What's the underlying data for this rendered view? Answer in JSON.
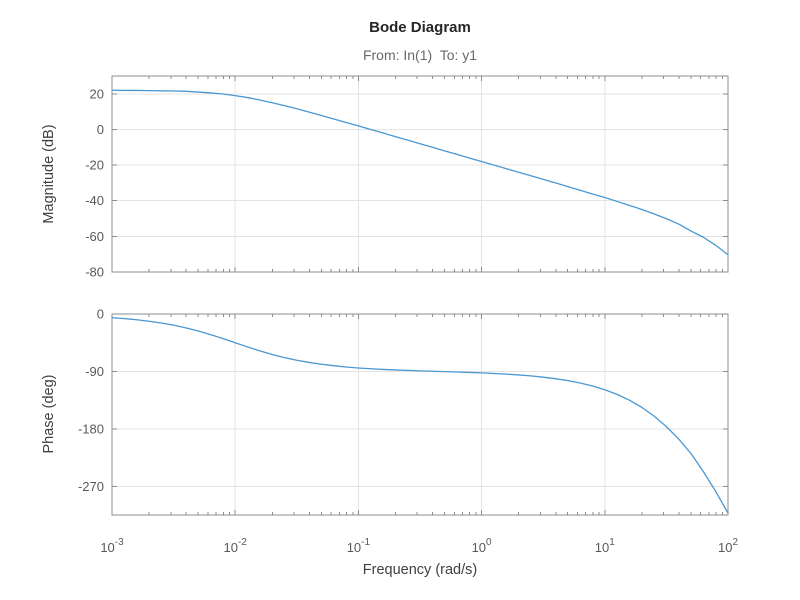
{
  "figure": {
    "title": "Bode Diagram",
    "subtitle": "From: In(1)  To: y1",
    "background": "#ffffff"
  },
  "style": {
    "line_color": "#4a97d2",
    "grid_color": "#e4e4e4",
    "axis_color": "#8c8c8c",
    "tick_label_color": "#595959",
    "title_color": "#262626",
    "subtitle_color": "#696969",
    "axis_label_color": "#3f3f3f"
  },
  "xaxis": {
    "label": "Frequency (rad/s)",
    "unit": "rad/s",
    "scale": "log",
    "ticks_log10": [
      -3,
      -2,
      -1,
      0,
      1,
      2
    ],
    "tick_labels": [
      {
        "base": "10",
        "exp": "-3"
      },
      {
        "base": "10",
        "exp": "-2"
      },
      {
        "base": "10",
        "exp": "-1"
      },
      {
        "base": "10",
        "exp": "0"
      },
      {
        "base": "10",
        "exp": "1"
      },
      {
        "base": "10",
        "exp": "2"
      }
    ]
  },
  "chart_data": [
    {
      "type": "line",
      "name": "magnitude",
      "ylabel": "Magnitude (dB)",
      "grid": true,
      "xlim_log10": [
        -3,
        2
      ],
      "ylim": [
        -80,
        30
      ],
      "yticks": [
        20,
        0,
        -20,
        -40,
        -60,
        -80
      ],
      "x_log10": [
        -3.0,
        -2.9,
        -2.8,
        -2.7,
        -2.6,
        -2.5,
        -2.4,
        -2.3,
        -2.2,
        -2.1,
        -2.0,
        -1.9,
        -1.8,
        -1.7,
        -1.6,
        -1.5,
        -1.4,
        -1.3,
        -1.2,
        -1.1,
        -1.0,
        -0.9,
        -0.8,
        -0.7,
        -0.6,
        -0.5,
        -0.4,
        -0.3,
        -0.2,
        -0.1,
        0.0,
        0.1,
        0.2,
        0.3,
        0.4,
        0.5,
        0.6,
        0.7,
        0.8,
        0.9,
        1.0,
        1.1,
        1.2,
        1.3,
        1.4,
        1.5,
        1.6,
        1.7,
        1.8,
        1.9,
        2.0
      ],
      "values": [
        22.0,
        21.9,
        21.9,
        21.8,
        21.7,
        21.6,
        21.4,
        21.0,
        20.5,
        19.9,
        19.0,
        17.9,
        16.5,
        15.0,
        13.4,
        11.6,
        9.7,
        7.8,
        5.9,
        3.9,
        2.0,
        0.0,
        -2.0,
        -4.0,
        -6.0,
        -8.0,
        -10.0,
        -12.0,
        -14.0,
        -16.0,
        -18.0,
        -20.0,
        -22.0,
        -24.0,
        -26.0,
        -28.0,
        -30.0,
        -32.1,
        -34.1,
        -36.2,
        -38.2,
        -40.4,
        -42.6,
        -44.9,
        -47.4,
        -50.1,
        -53.1,
        -57.0,
        -60.5,
        -65.0,
        -70.3
      ]
    },
    {
      "type": "line",
      "name": "phase",
      "ylabel": "Phase (deg)",
      "grid": true,
      "xlim_log10": [
        -3,
        2
      ],
      "ylim": [
        -315,
        0
      ],
      "yticks": [
        0,
        -90,
        -180,
        -270
      ],
      "x_log10": [
        -3.0,
        -2.9,
        -2.8,
        -2.7,
        -2.6,
        -2.5,
        -2.4,
        -2.3,
        -2.2,
        -2.1,
        -2.0,
        -1.9,
        -1.8,
        -1.7,
        -1.6,
        -1.5,
        -1.4,
        -1.3,
        -1.2,
        -1.1,
        -1.0,
        -0.9,
        -0.8,
        -0.7,
        -0.6,
        -0.5,
        -0.4,
        -0.3,
        -0.2,
        -0.1,
        0.0,
        0.1,
        0.2,
        0.3,
        0.4,
        0.5,
        0.6,
        0.7,
        0.8,
        0.9,
        1.0,
        1.1,
        1.2,
        1.3,
        1.4,
        1.5,
        1.6,
        1.7,
        1.8,
        1.9,
        2.0
      ],
      "values": [
        -5.7,
        -7.2,
        -9.0,
        -11.3,
        -14.1,
        -17.5,
        -21.7,
        -26.6,
        -32.3,
        -38.4,
        -45.0,
        -51.6,
        -57.8,
        -63.4,
        -68.3,
        -72.5,
        -75.9,
        -78.7,
        -81.0,
        -83.0,
        -84.6,
        -85.8,
        -86.9,
        -87.7,
        -88.4,
        -89.1,
        -89.7,
        -90.3,
        -90.9,
        -91.6,
        -92.3,
        -93.2,
        -94.2,
        -95.5,
        -97.0,
        -99.0,
        -101.4,
        -104.4,
        -108.1,
        -112.8,
        -118.7,
        -126.0,
        -135.1,
        -146.3,
        -160.0,
        -176.5,
        -196.0,
        -218.8,
        -247.0,
        -278.0,
        -312.0
      ]
    }
  ]
}
